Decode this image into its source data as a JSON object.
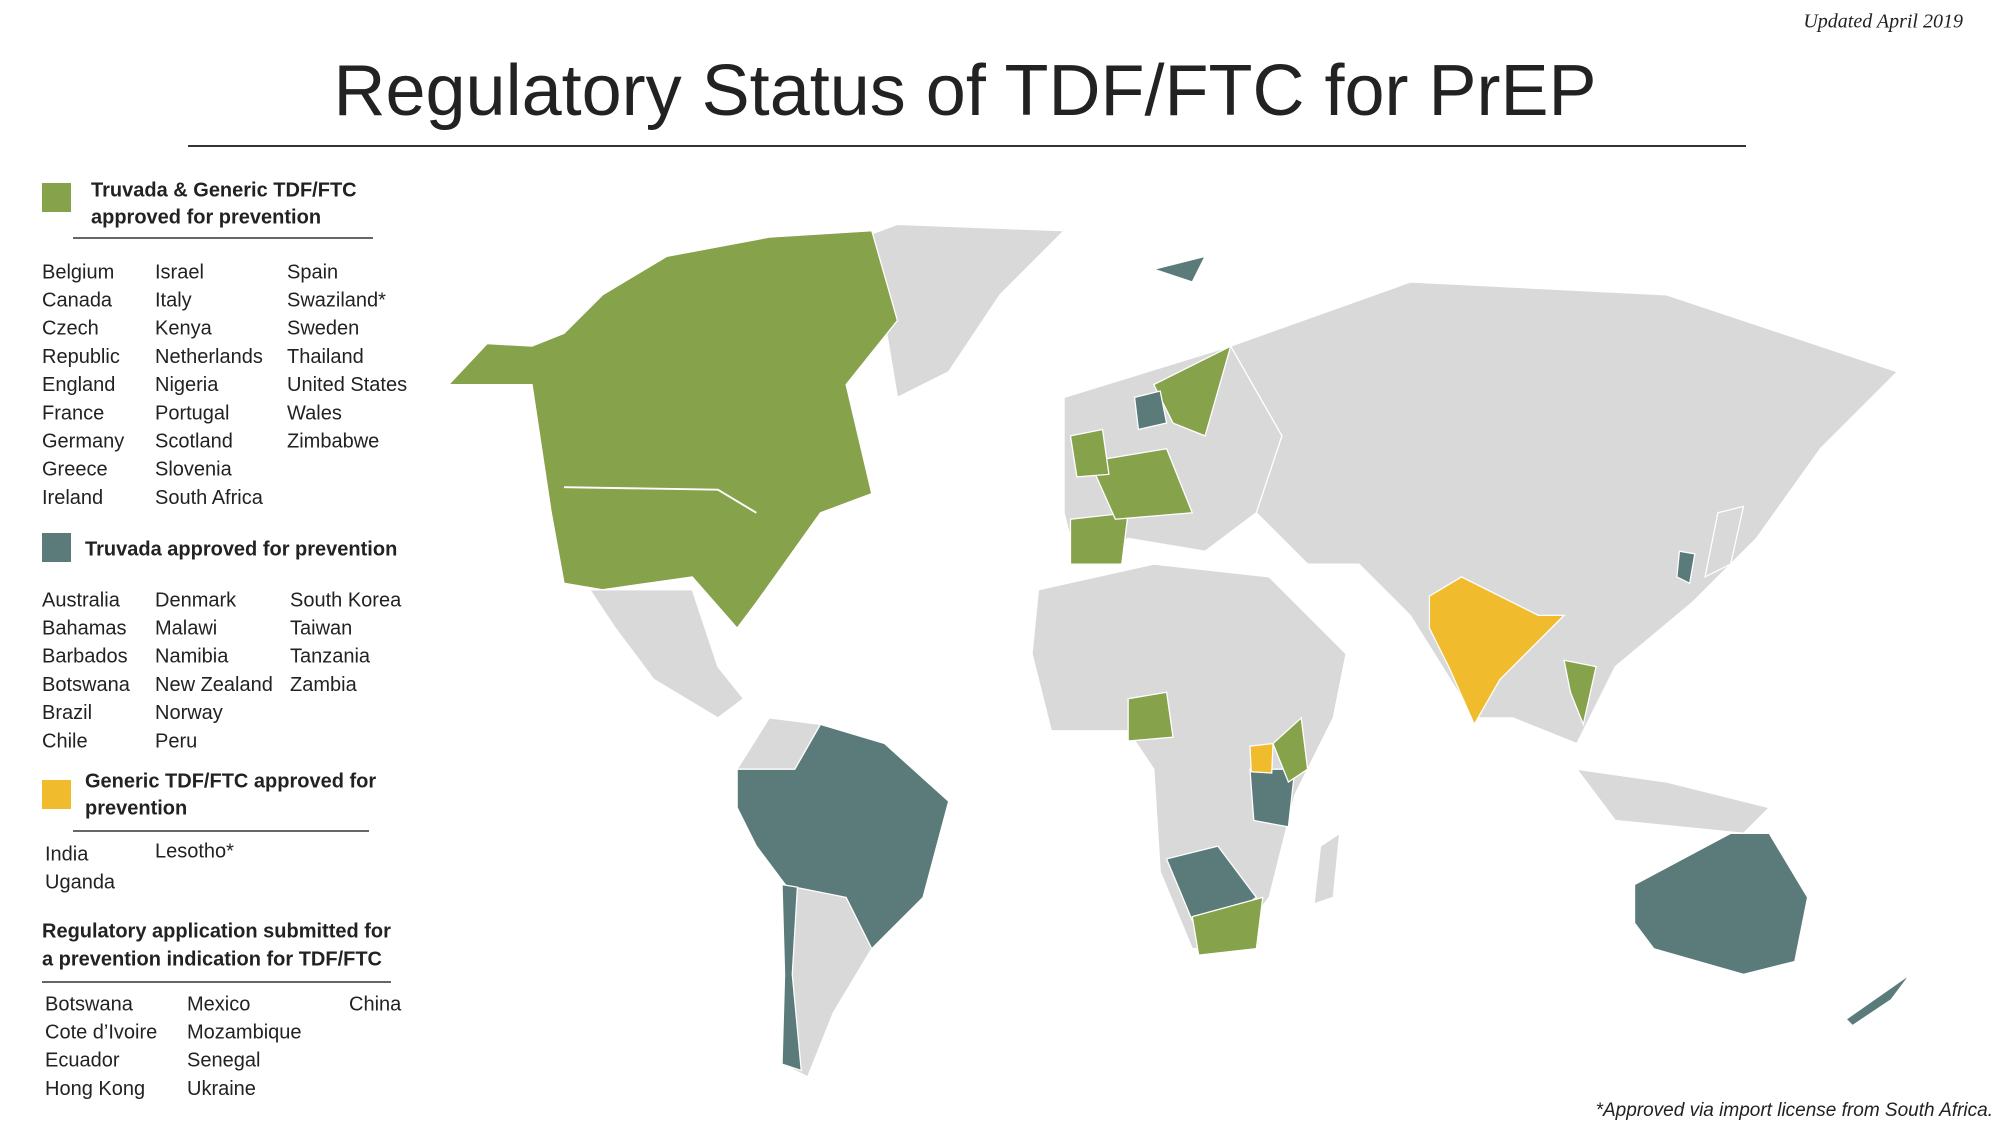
{
  "header": {
    "updated": "Updated April 2019",
    "title": "Regulatory Status of TDF/FTC for PrEP"
  },
  "legend": {
    "sections": [
      {
        "title_lines": [
          "Truvada & Generic TDF/FTC",
          "approved for prevention"
        ],
        "color": "#86a24b",
        "columns": [
          [
            "Belgium",
            "Canada",
            "Czech",
            "Republic",
            "England",
            "France",
            "Germany",
            "Greece",
            "Ireland"
          ],
          [
            "Israel",
            "Italy",
            "Kenya",
            "Netherlands",
            "Nigeria",
            "Portugal",
            "Scotland",
            "Slovenia",
            "South Africa"
          ],
          [
            "Spain",
            "Swaziland*",
            "Sweden",
            "Thailand",
            "United States",
            "Wales",
            "Zimbabwe"
          ]
        ]
      },
      {
        "title_lines": [
          "Truvada approved for prevention"
        ],
        "color": "#5b7b7b",
        "columns": [
          [
            "Australia",
            "Bahamas",
            "Barbados",
            "Botswana",
            "Brazil",
            "Chile"
          ],
          [
            "Denmark",
            "Malawi",
            "Namibia",
            "New Zealand",
            "Norway",
            "Peru"
          ],
          [
            "South Korea",
            "Taiwan",
            "Tanzania",
            "Zambia"
          ]
        ]
      },
      {
        "title_lines": [
          "Generic TDF/FTC approved for",
          "prevention"
        ],
        "color": "#f0bc2e",
        "columns": [
          [
            "India",
            "Uganda"
          ],
          [
            "Lesotho*"
          ]
        ]
      },
      {
        "title_lines": [
          "Regulatory application submitted for",
          "a prevention indication for TDF/FTC"
        ],
        "columns": [
          [
            "Botswana",
            "Cote d’Ivoire",
            "Ecuador",
            "Hong Kong"
          ],
          [
            "Mexico",
            "Mozambique",
            "Senegal",
            "Ukraine"
          ],
          [
            "China"
          ]
        ]
      }
    ]
  },
  "footnote": "*Approved via import license from South Africa."
}
